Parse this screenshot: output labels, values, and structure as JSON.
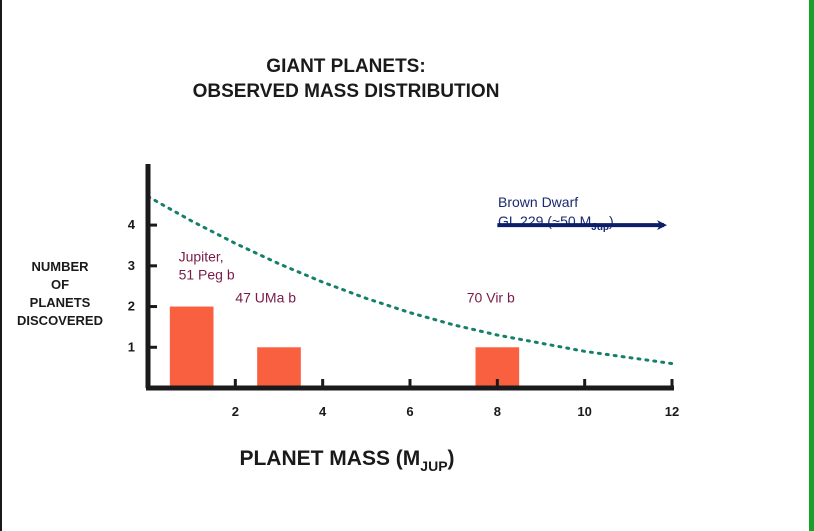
{
  "chart_data": {
    "type": "bar",
    "title": "GIANT PLANETS:",
    "subtitle": "OBSERVED MASS DISTRIBUTION",
    "xlabel": "PLANET MASS (M",
    "xlabel_sub": "JUP",
    "xlabel_close": ")",
    "ylabel": [
      "NUMBER",
      "OF",
      "PLANETS",
      "DISCOVERED"
    ],
    "xlim": [
      0,
      12
    ],
    "ylim": [
      0,
      5.5
    ],
    "xticks": [
      2,
      4,
      6,
      8,
      10,
      12
    ],
    "yticks": [
      1,
      2,
      3,
      4
    ],
    "bars": [
      {
        "x0": 0.5,
        "x1": 1.5,
        "value": 2
      },
      {
        "x0": 2.5,
        "x1": 3.5,
        "value": 1
      },
      {
        "x0": 7.5,
        "x1": 8.5,
        "value": 1
      }
    ],
    "curve": {
      "style": "dotted",
      "x": [
        0,
        1,
        2,
        3,
        4,
        5,
        6,
        7,
        8,
        9,
        10,
        11,
        12
      ],
      "y": [
        4.7,
        4.1,
        3.55,
        3.05,
        2.6,
        2.2,
        1.85,
        1.55,
        1.3,
        1.1,
        0.9,
        0.75,
        0.6
      ]
    },
    "annotations": [
      {
        "lines": [
          "Jupiter,",
          "51 Peg b"
        ],
        "x": 0.7,
        "y": 3.1
      },
      {
        "lines": [
          "47 UMa b"
        ],
        "x": 2.0,
        "y": 2.1
      },
      {
        "lines": [
          "70 Vir b"
        ],
        "x": 7.3,
        "y": 2.1
      }
    ],
    "brown_dwarf": {
      "line1": "Brown Dwarf",
      "line2_main": "GL 229 (~50 M",
      "line2_sub": "Jup",
      "line2_close": ")",
      "arrow": {
        "x0": 8,
        "x1": 12,
        "y": 4
      }
    },
    "colors": {
      "bar": "#f86040",
      "curve": "#15806a",
      "axis": "#1a1a1a",
      "annotation": "#7a1a4a",
      "brown_dwarf": "#1a2a70",
      "arrow": "#0c1e6a"
    }
  }
}
